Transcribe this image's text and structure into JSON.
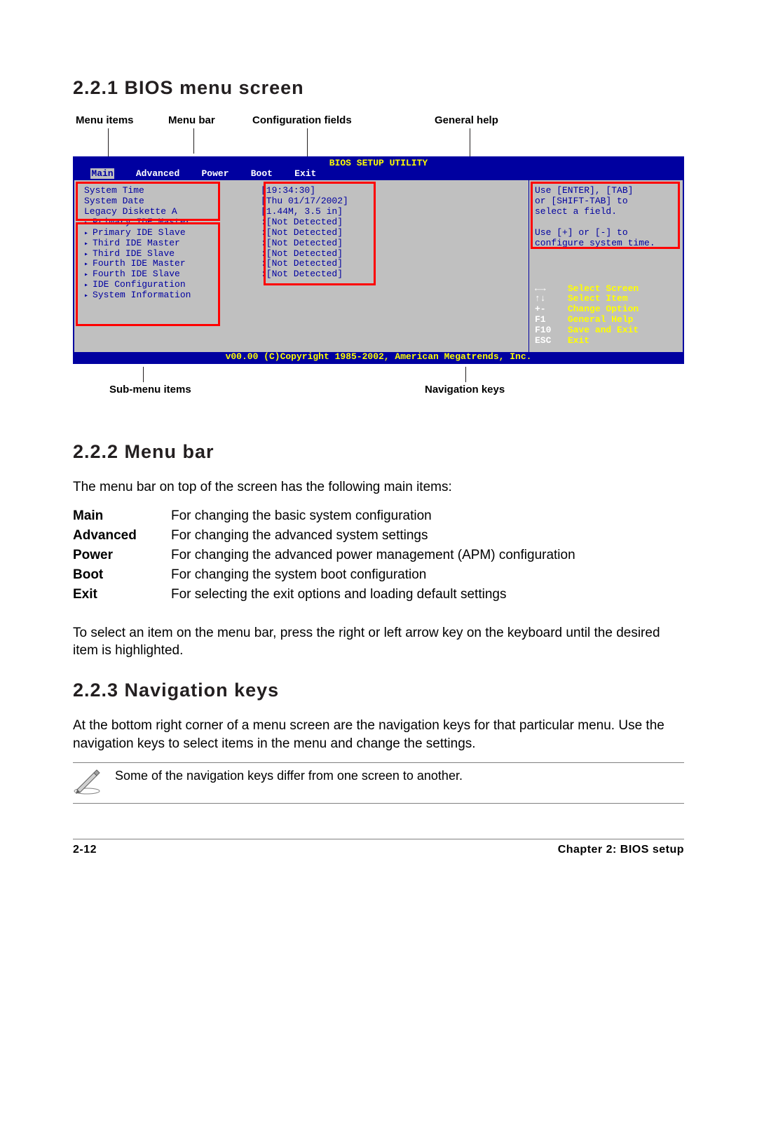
{
  "section_221": "2.2.1  BIOS menu screen",
  "callouts_top": {
    "menu_items": "Menu items",
    "menu_bar": "Menu bar",
    "config_fields": "Configuration fields",
    "general_help": "General help"
  },
  "bios": {
    "title": "BIOS SETUP UTILITY",
    "tabs": {
      "main": "Main",
      "advanced": "Advanced",
      "power": "Power",
      "boot": "Boot",
      "exit": "Exit"
    },
    "left_rows": [
      {
        "label": "System Time",
        "value": "[19:34:30]",
        "submenu": false
      },
      {
        "label": "System Date",
        "value": "[Thu 01/17/2002]",
        "submenu": false
      },
      {
        "label": "Legacy Diskette A",
        "value": "[1.44M, 3.5 in]",
        "submenu": false
      },
      {
        "label": "",
        "value": "",
        "submenu": false
      },
      {
        "label": "Primary IDE Master",
        "value": ":[Not Detected]",
        "submenu": true
      },
      {
        "label": "Primary IDE Slave",
        "value": ":[Not Detected]",
        "submenu": true
      },
      {
        "label": "Third IDE Master",
        "value": ":[Not Detected]",
        "submenu": true
      },
      {
        "label": "Third IDE Slave",
        "value": ":[Not Detected]",
        "submenu": true
      },
      {
        "label": "Fourth IDE Master",
        "value": ":[Not Detected]",
        "submenu": true
      },
      {
        "label": "Fourth IDE Slave",
        "value": ":[Not Detected]",
        "submenu": true
      },
      {
        "label": "IDE Configuration",
        "value": "",
        "submenu": true
      },
      {
        "label": "",
        "value": "",
        "submenu": false
      },
      {
        "label": "System Information",
        "value": "",
        "submenu": true
      }
    ],
    "help_lines": [
      "Use [ENTER], [TAB]",
      "or [SHIFT-TAB] to",
      "select a field.",
      "",
      "Use [+] or [-] to",
      "configure system time."
    ],
    "nav": [
      {
        "key": "←→",
        "desc": "Select Screen"
      },
      {
        "key": "↑↓",
        "desc": "Select Item"
      },
      {
        "key": "+-",
        "desc": "Change Option"
      },
      {
        "key": "F1",
        "desc": "General Help"
      },
      {
        "key": "F10",
        "desc": "Save and Exit"
      },
      {
        "key": "ESC",
        "desc": "Exit"
      }
    ],
    "footer": "v00.00 (C)Copyright 1985-2002, American Megatrends, Inc.",
    "colors": {
      "blue": "#0000a0",
      "gray": "#c0c0c0",
      "yellow": "#ffff00",
      "white": "#ffffff",
      "red": "#ff0000"
    }
  },
  "callouts_bottom": {
    "submenu": "Sub-menu items",
    "navkeys": "Navigation keys"
  },
  "section_222": "2.2.2  Menu bar",
  "text_222_intro": "The menu bar on top of the screen has the following main items:",
  "menubar_items": [
    {
      "name": "Main",
      "desc": "For changing the basic system configuration"
    },
    {
      "name": "Advanced",
      "desc": "For changing the advanced system settings"
    },
    {
      "name": "Power",
      "desc": "For changing the advanced power management (APM) configuration"
    },
    {
      "name": "Boot",
      "desc": "For changing the system boot configuration"
    },
    {
      "name": "Exit",
      "desc": "For selecting the exit options and loading default settings"
    }
  ],
  "text_222_outro": "To select an item on the menu bar, press the right or left arrow key on the keyboard until the desired item is highlighted.",
  "section_223": "2.2.3  Navigation keys",
  "text_223": "At the bottom right corner of a menu screen are the navigation keys for that particular menu. Use the navigation keys to select items in the menu and change the settings.",
  "note": "Some of the navigation keys differ from one screen to another.",
  "footer": {
    "page": "2-12",
    "chapter": "Chapter 2: BIOS setup"
  }
}
